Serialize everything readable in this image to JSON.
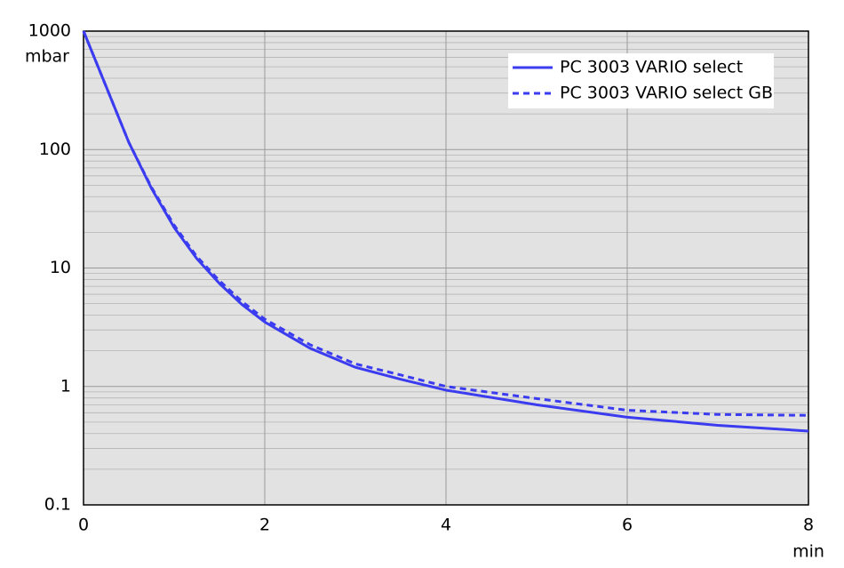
{
  "chart_data": {
    "type": "line",
    "x_label": "min",
    "y_label": "mbar",
    "series": [
      {
        "name": "PC 3003 VARIO select",
        "color": "#3b3bf0",
        "line_style": "solid",
        "x": [
          0,
          0.25,
          0.5,
          0.75,
          1,
          1.25,
          1.5,
          1.75,
          2,
          2.5,
          3,
          3.5,
          4,
          5,
          6,
          7,
          8
        ],
        "values": [
          1000,
          340,
          115,
          47,
          22,
          12,
          7.4,
          4.9,
          3.5,
          2.1,
          1.45,
          1.15,
          0.93,
          0.7,
          0.55,
          0.47,
          0.42
        ]
      },
      {
        "name": "PC 3003 VARIO select GB",
        "color": "#3b3bf0",
        "line_style": "dashed",
        "x": [
          0,
          0.25,
          0.5,
          0.75,
          1,
          1.25,
          1.5,
          1.75,
          2,
          2.5,
          3,
          3.5,
          4,
          5,
          6,
          7,
          8
        ],
        "values": [
          1000,
          340,
          115,
          48,
          23,
          12.5,
          7.8,
          5.2,
          3.7,
          2.25,
          1.55,
          1.25,
          1.0,
          0.79,
          0.63,
          0.58,
          0.57
        ]
      }
    ],
    "xlim": [
      0,
      8
    ],
    "xticks": [
      0,
      2,
      4,
      6,
      8
    ],
    "ylim": [
      0.1,
      1000
    ],
    "yticks": [
      0.1,
      1,
      10,
      100,
      1000
    ],
    "y_scale": "log",
    "grid": true,
    "minor_grid": true,
    "legend": "upper right"
  }
}
